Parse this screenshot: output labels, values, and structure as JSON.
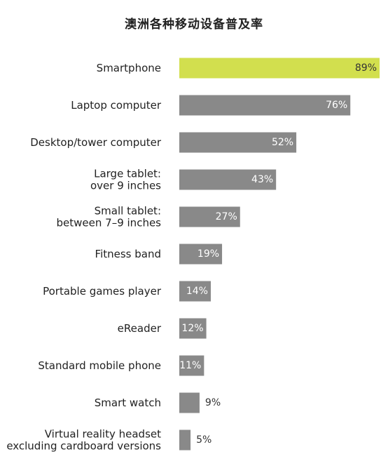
{
  "title": "澳洲各种移动设备普及率",
  "colors": {
    "highlight": "#d2df4e",
    "bar": "#898989",
    "label_text": "#222222",
    "value_text_inside": "#ffffff",
    "value_text_outside": "#333333"
  },
  "chart_data": {
    "type": "bar",
    "orientation": "horizontal",
    "title": "澳洲各种移动设备普及率",
    "xlabel": "",
    "ylabel": "",
    "xlim": [
      0,
      89
    ],
    "unit": "%",
    "highlight_index": 0,
    "categories": [
      [
        "Smartphone"
      ],
      [
        "Laptop computer"
      ],
      [
        "Desktop/tower computer"
      ],
      [
        "Large tablet:",
        "over 9 inches"
      ],
      [
        "Small tablet:",
        "between 7–9 inches"
      ],
      [
        "Fitness band"
      ],
      [
        "Portable games player"
      ],
      [
        "eReader"
      ],
      [
        "Standard mobile phone"
      ],
      [
        "Smart watch"
      ],
      [
        "Virtual reality headset",
        "excluding cardboard versions"
      ]
    ],
    "values": [
      89,
      76,
      52,
      43,
      27,
      19,
      14,
      12,
      11,
      9,
      5
    ],
    "value_labels": [
      "89%",
      "76%",
      "52%",
      "43%",
      "27%",
      "19%",
      "14%",
      "12%",
      "11%",
      "9%",
      "5%"
    ]
  }
}
